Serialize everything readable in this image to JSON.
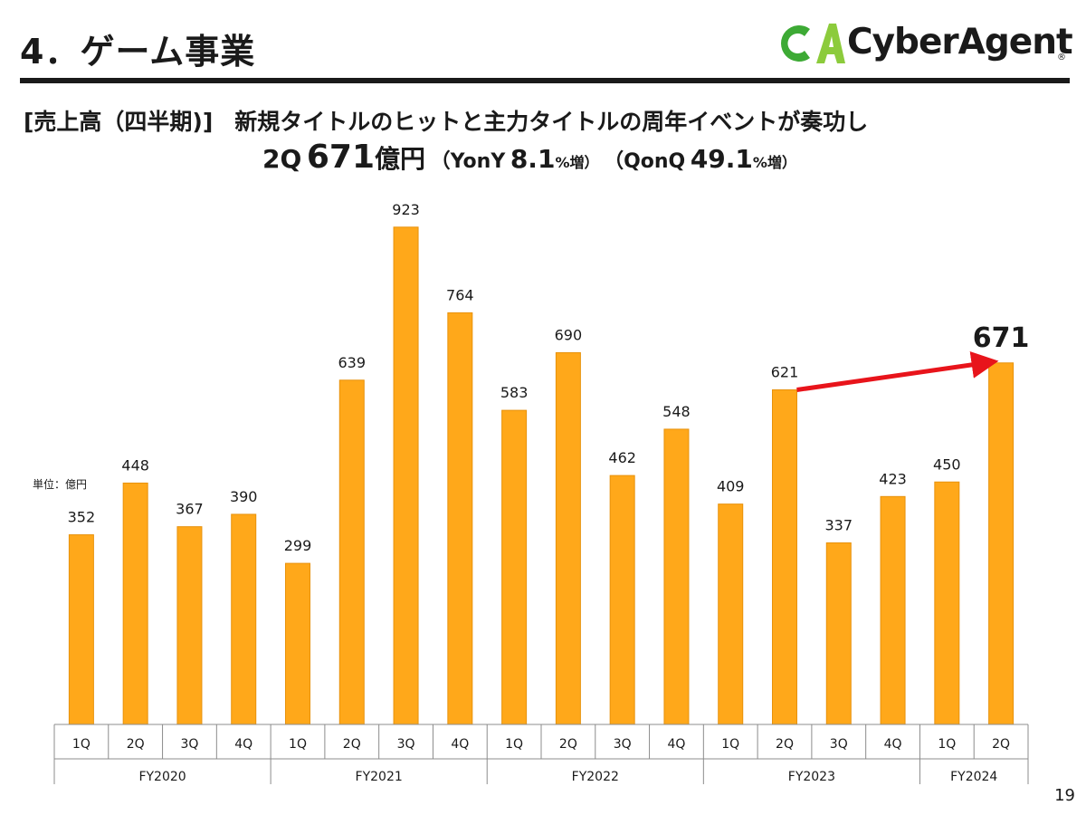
{
  "header": {
    "title": "4．ゲーム事業",
    "logo_text": "CyberAgent",
    "logo_reg": "®"
  },
  "subtitle": {
    "label": "[売上高（四半期)]",
    "headline": "新規タイトルのヒットと主力タイトルの周年イベントが奏功し"
  },
  "summary": {
    "quarter": "2Q",
    "value": "671",
    "unit": "億円",
    "yony_open": "（YonY",
    "yony_value": "8.1",
    "yony_unit": "%増）",
    "qonq_open": "（QonQ",
    "qonq_value": "49.1",
    "qonq_unit": "%増）"
  },
  "unit_label": "単位：億円",
  "page_number": "19",
  "colors": {
    "bar": "#FFA81A",
    "bar_edge": "#E8920C",
    "arrow": "#E8141B",
    "logo_green": "#3DAA35",
    "logo_light": "#8CCB3C"
  },
  "chart_data": {
    "type": "bar",
    "ylim": [
      0,
      1000
    ],
    "grid": false,
    "categories": [
      "1Q",
      "2Q",
      "3Q",
      "4Q",
      "1Q",
      "2Q",
      "3Q",
      "4Q",
      "1Q",
      "2Q",
      "3Q",
      "4Q",
      "1Q",
      "2Q",
      "3Q",
      "4Q",
      "1Q",
      "2Q"
    ],
    "groups": [
      {
        "label": "FY2020",
        "count": 4
      },
      {
        "label": "FY2021",
        "count": 4
      },
      {
        "label": "FY2022",
        "count": 4
      },
      {
        "label": "FY2023",
        "count": 4
      },
      {
        "label": "FY2024",
        "count": 2
      }
    ],
    "values": [
      352,
      448,
      367,
      390,
      299,
      639,
      923,
      764,
      583,
      690,
      462,
      548,
      409,
      621,
      337,
      423,
      450,
      671
    ],
    "highlight_label": "671",
    "arrow": {
      "from_index": 13,
      "to_index": 17
    }
  }
}
